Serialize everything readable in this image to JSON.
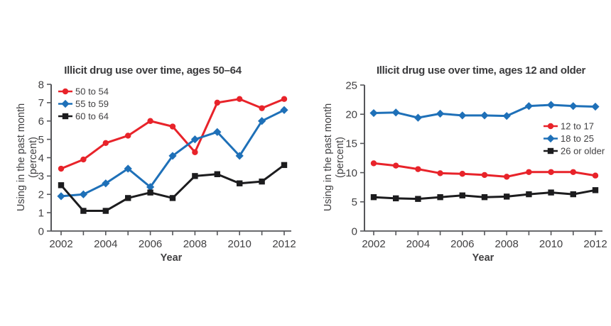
{
  "figure": {
    "background": "#ffffff",
    "text_color": "#414042",
    "title_color": "#3a3a3c",
    "axis_color": "#55565a"
  },
  "colors": {
    "red": "#e8232a",
    "blue": "#1e70b8",
    "black": "#1c1c1e"
  },
  "chart_data": [
    {
      "id": "ages-50-64",
      "type": "line",
      "title": "Illicit drug use over time, ages 50–64",
      "xlabel": "Year",
      "ylabel_line1": "Using in the past month",
      "ylabel_line2": "(percent)",
      "x": [
        2002,
        2003,
        2004,
        2005,
        2006,
        2007,
        2008,
        2009,
        2010,
        2011,
        2012
      ],
      "x_tick_labels": [
        "2002",
        "2004",
        "2006",
        "2008",
        "2010",
        "2012"
      ],
      "ylim": [
        0,
        8
      ],
      "yticks": [
        0,
        1,
        2,
        3,
        4,
        5,
        6,
        7,
        8
      ],
      "grid": false,
      "legend_position": "top-left-inside",
      "series": [
        {
          "name": "50 to 54",
          "color_key": "red",
          "marker": "circle",
          "values": [
            3.4,
            3.9,
            4.8,
            5.2,
            6.0,
            5.7,
            4.3,
            7.0,
            7.2,
            6.7,
            7.2
          ]
        },
        {
          "name": "55 to 59",
          "color_key": "blue",
          "marker": "diamond",
          "values": [
            1.9,
            2.0,
            2.6,
            3.4,
            2.4,
            4.1,
            5.0,
            5.4,
            4.1,
            6.0,
            6.6
          ]
        },
        {
          "name": "60 to 64",
          "color_key": "black",
          "marker": "square",
          "values": [
            2.5,
            1.1,
            1.1,
            1.8,
            2.1,
            1.8,
            3.0,
            3.1,
            2.6,
            2.7,
            3.6
          ]
        }
      ]
    },
    {
      "id": "ages-12-older",
      "type": "line",
      "title": "Illicit drug use over time, ages 12 and older",
      "xlabel": "Year",
      "ylabel_line1": "Using in the past month",
      "ylabel_line2": "(percent)",
      "x": [
        2002,
        2003,
        2004,
        2005,
        2006,
        2007,
        2008,
        2009,
        2010,
        2011,
        2012
      ],
      "x_tick_labels": [
        "2002",
        "2004",
        "2006",
        "2008",
        "2010",
        "2012"
      ],
      "ylim": [
        0,
        25
      ],
      "yticks": [
        0,
        5,
        10,
        15,
        20,
        25
      ],
      "grid": false,
      "legend_position": "middle-right-inside",
      "series": [
        {
          "name": "12 to 17",
          "color_key": "red",
          "marker": "circle",
          "values": [
            11.6,
            11.2,
            10.6,
            9.9,
            9.8,
            9.6,
            9.3,
            10.1,
            10.1,
            10.1,
            9.5
          ]
        },
        {
          "name": "18 to 25",
          "color_key": "blue",
          "marker": "diamond",
          "values": [
            20.2,
            20.3,
            19.4,
            20.1,
            19.8,
            19.8,
            19.7,
            21.4,
            21.6,
            21.4,
            21.3
          ]
        },
        {
          "name": "26 or older",
          "color_key": "black",
          "marker": "square",
          "values": [
            5.8,
            5.6,
            5.5,
            5.8,
            6.1,
            5.8,
            5.9,
            6.3,
            6.6,
            6.3,
            7.0
          ]
        }
      ]
    }
  ]
}
